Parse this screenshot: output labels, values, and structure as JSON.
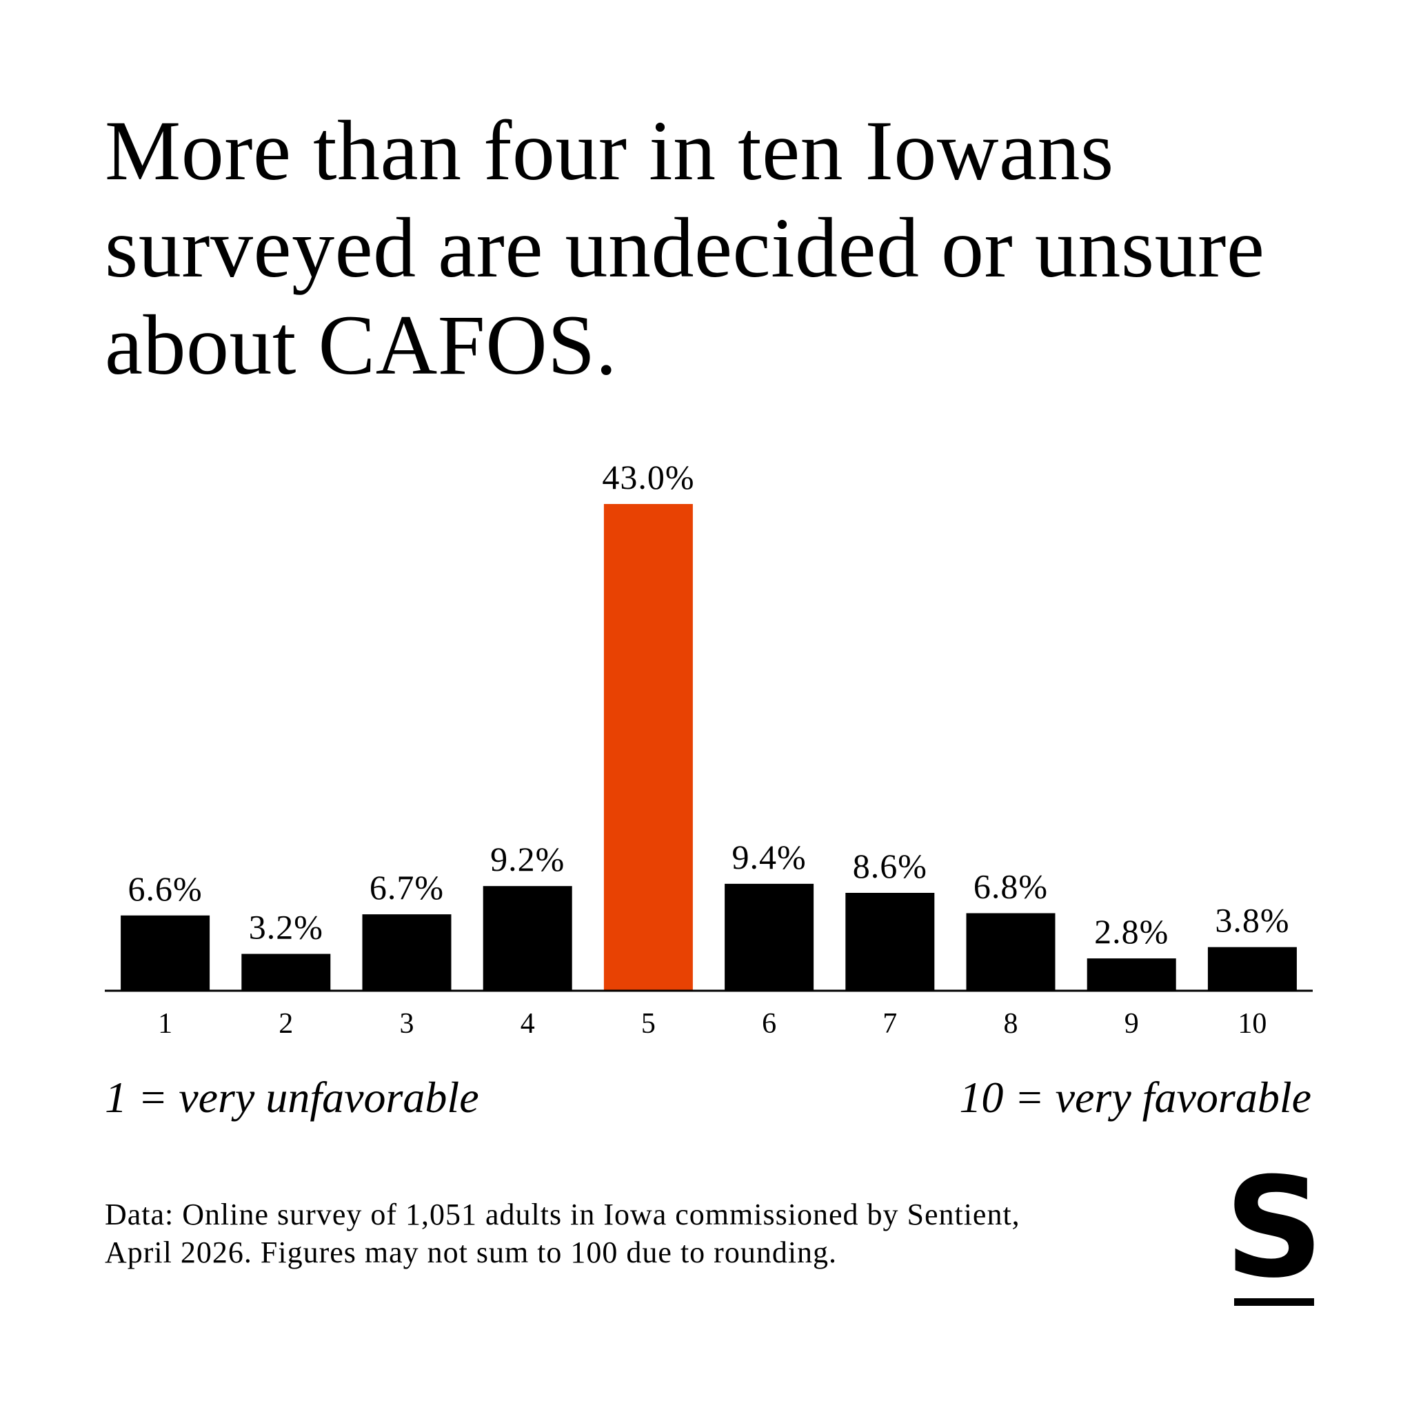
{
  "title": "More than four in ten Iowans surveyed are undecided or unsure about CAFOS.",
  "chart_data": {
    "type": "bar",
    "title": "More than four in ten Iowans surveyed are undecided or unsure about CAFOS.",
    "categories": [
      "1",
      "2",
      "3",
      "4",
      "5",
      "6",
      "7",
      "8",
      "9",
      "10"
    ],
    "values": [
      6.6,
      3.2,
      6.7,
      9.2,
      43.0,
      9.4,
      8.6,
      6.8,
      2.8,
      3.8
    ],
    "value_labels": [
      "6.6%",
      "3.2%",
      "6.7%",
      "9.2%",
      "43.0%",
      "9.4%",
      "8.6%",
      "6.8%",
      "2.8%",
      "3.8%"
    ],
    "highlight_index": 4,
    "colors": {
      "bar": "#000000",
      "highlight": "#E84203"
    },
    "ylim": [
      0,
      43.0
    ],
    "grid": false,
    "xlabel": "",
    "ylabel": ""
  },
  "scale": {
    "left": "1 = very unfavorable",
    "right": "10 = very favorable"
  },
  "footnote": "Data: Online survey of 1,051 adults in Iowa commissioned by Sentient, April 2026. Figures may not sum to 100 due to rounding.",
  "logo": {
    "letter": "S",
    "color": "#000000"
  }
}
